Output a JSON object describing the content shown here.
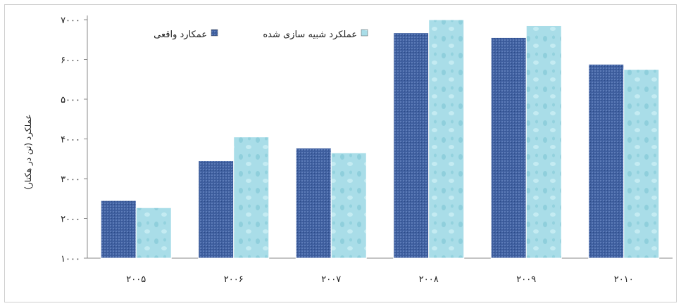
{
  "chart_data": {
    "type": "bar",
    "categories": [
      "۲۰۰۵",
      "۲۰۰۶",
      "۲۰۰۷",
      "۲۰۰۸",
      "۲۰۰۹",
      "۲۰۱۰"
    ],
    "series": [
      {
        "name": "عمکارد واقعی",
        "values": [
          2450,
          3450,
          3770,
          6670,
          6550,
          5880
        ],
        "color": "#3f5f9f"
      },
      {
        "name": "عملکرد شبیه سازی شده",
        "values": [
          2270,
          4050,
          3650,
          7000,
          6850,
          5750
        ],
        "color": "#a9dde8"
      }
    ],
    "ylabel": "عملکرد (تن در هکتار)",
    "ylim": [
      1000,
      7000
    ],
    "yticks": [
      1000,
      2000,
      3000,
      4000,
      5000,
      6000,
      7000
    ],
    "ytick_labels": [
      "۱۰۰۰",
      "۲۰۰۰",
      "۳۰۰۰",
      "۴۰۰۰",
      "۵۰۰۰",
      "۶۰۰۰",
      "۷۰۰۰"
    ],
    "grid": false,
    "legend_position": "top"
  }
}
